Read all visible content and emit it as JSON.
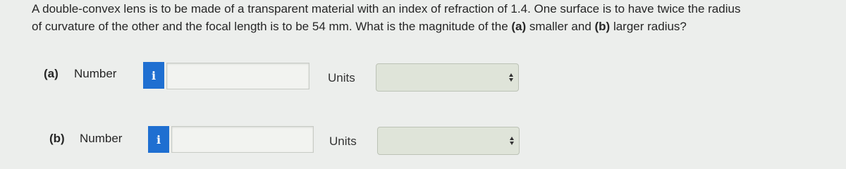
{
  "question": {
    "line1": "A double-convex lens is to be made of a transparent material with an index of refraction of 1.4. One surface is to have twice the radius",
    "line2": [
      "of curvature of the other and the focal length is to be 54 mm. What is the magnitude of the ",
      "(a)",
      " smaller and ",
      "(b)",
      " larger radius?"
    ]
  },
  "parts": [
    {
      "tag": "(a)",
      "label": "Number",
      "info": "i",
      "units_label": "Units"
    },
    {
      "tag": "(b)",
      "label": "Number",
      "info": "i",
      "units_label": "Units"
    }
  ]
}
